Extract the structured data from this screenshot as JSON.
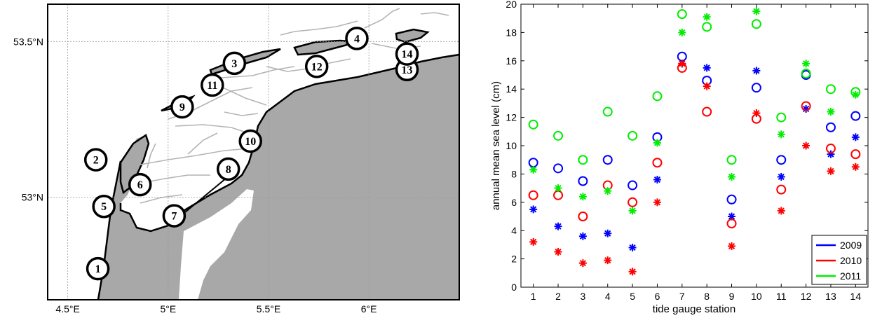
{
  "map": {
    "lon_labels": [
      "4.5°E",
      "5°E",
      "5.5°E",
      "6°E"
    ],
    "lon_values": [
      4.5,
      5.0,
      5.5,
      6.0
    ],
    "lat_labels": [
      "53.5°N",
      "53°N"
    ],
    "lat_values": [
      53.5,
      53.0
    ],
    "lon_range": [
      4.4,
      6.45
    ],
    "lat_range": [
      52.67,
      53.62
    ],
    "stations": [
      {
        "label": "1",
        "lon": 4.65,
        "lat": 52.77
      },
      {
        "label": "2",
        "lon": 4.64,
        "lat": 53.12
      },
      {
        "label": "3",
        "lon": 5.33,
        "lat": 53.43
      },
      {
        "label": "4",
        "lon": 5.94,
        "lat": 53.51
      },
      {
        "label": "5",
        "lon": 4.68,
        "lat": 52.97
      },
      {
        "label": "6",
        "lon": 4.86,
        "lat": 53.04
      },
      {
        "label": "7",
        "lon": 5.03,
        "lat": 52.94
      },
      {
        "label": "8",
        "lon": 5.3,
        "lat": 53.09
      },
      {
        "label": "9",
        "lon": 5.07,
        "lat": 53.29
      },
      {
        "label": "10",
        "lon": 5.41,
        "lat": 53.18
      },
      {
        "label": "11",
        "lon": 5.22,
        "lat": 53.36
      },
      {
        "label": "12",
        "lon": 5.74,
        "lat": 53.42
      },
      {
        "label": "13",
        "lon": 6.19,
        "lat": 53.41
      },
      {
        "label": "14",
        "lon": 6.19,
        "lat": 53.46
      }
    ],
    "colors": {
      "land": "#a8a8a8",
      "sea": "#ffffff",
      "channels": "#b4b4b4",
      "grid": "#999999"
    }
  },
  "chart_data": {
    "type": "scatter",
    "xlabel": "tide gauge station",
    "ylabel": "annual mean sea level (cm)",
    "xlim": [
      0.5,
      14.5
    ],
    "ylim": [
      0,
      20
    ],
    "x_ticks": [
      1,
      2,
      3,
      4,
      5,
      6,
      7,
      8,
      9,
      10,
      11,
      12,
      13,
      14
    ],
    "y_ticks": [
      0,
      2,
      4,
      6,
      8,
      10,
      12,
      14,
      16,
      18,
      20
    ],
    "legend_position": "bottom-right",
    "marker_styles": [
      "circle",
      "star"
    ],
    "series": [
      {
        "name": "2009",
        "color": "#0000ff",
        "circle": [
          8.8,
          8.4,
          7.5,
          9.0,
          7.2,
          10.6,
          16.3,
          14.6,
          6.2,
          14.1,
          9.0,
          15.0,
          11.3,
          12.1
        ],
        "star": [
          5.5,
          4.3,
          3.6,
          3.8,
          2.8,
          7.6,
          15.8,
          15.5,
          5.0,
          15.3,
          7.8,
          12.6,
          9.4,
          10.6
        ]
      },
      {
        "name": "2010",
        "color": "#ff0000",
        "circle": [
          6.5,
          6.5,
          5.0,
          7.2,
          6.0,
          8.8,
          15.5,
          12.4,
          4.5,
          11.9,
          6.9,
          12.8,
          9.8,
          9.4
        ],
        "star": [
          3.2,
          2.5,
          1.7,
          1.9,
          1.1,
          6.0,
          15.8,
          14.2,
          2.9,
          12.3,
          5.4,
          10.0,
          8.2,
          8.5
        ]
      },
      {
        "name": "2011",
        "color": "#00ee00",
        "circle": [
          11.5,
          10.7,
          9.0,
          12.4,
          10.7,
          13.5,
          19.3,
          18.4,
          9.0,
          18.6,
          12.0,
          15.1,
          14.0,
          13.8
        ],
        "star": [
          8.3,
          7.0,
          6.4,
          6.8,
          5.4,
          10.2,
          18.0,
          19.1,
          7.8,
          19.5,
          10.8,
          15.8,
          12.4,
          13.6
        ]
      }
    ]
  }
}
